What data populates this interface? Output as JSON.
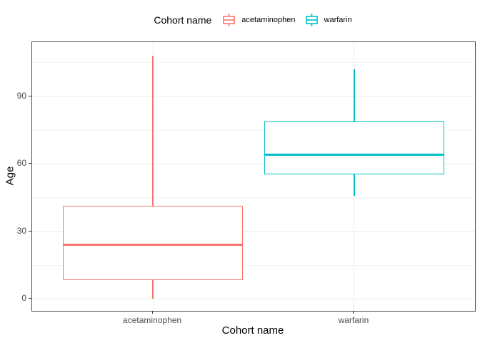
{
  "chart_data": {
    "type": "boxplot",
    "legend_title": "Cohort name",
    "xlabel": "Cohort name",
    "ylabel": "Age",
    "categories": [
      "acetaminophen",
      "warfarin"
    ],
    "series": [
      {
        "name": "acetaminophen",
        "color": "#F8766D",
        "min": 0,
        "q1": 8.5,
        "median": 24,
        "q3": 41.5,
        "max": 108
      },
      {
        "name": "warfarin",
        "color": "#00BFC4",
        "min": 46,
        "q1": 55.5,
        "median": 64,
        "q3": 79,
        "max": 102
      }
    ],
    "y_ticks": [
      0,
      30,
      60,
      90
    ],
    "y_minor_ticks": [
      15,
      45,
      75,
      105
    ],
    "ylim": [
      -5.25,
      114.1
    ],
    "grid": true,
    "legend_position": "top"
  },
  "colors": {
    "background": "#FFFFFF",
    "panel_border": "#4D4D4D",
    "grid_major": "#EBEBEB",
    "grid_minor": "#F5F5F5",
    "tick_mark": "#333333",
    "tick_label": "#4D4D4D",
    "axis_title": "#000000"
  }
}
